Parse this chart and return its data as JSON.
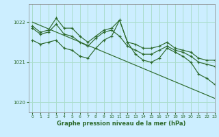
{
  "background_color": "#cceeff",
  "grid_color": "#aaddcc",
  "line_color": "#2d6a2d",
  "title": "Graphe pression niveau de la mer (hPa)",
  "xlim": [
    -0.5,
    23
  ],
  "ylim": [
    1019.75,
    1022.45
  ],
  "yticks": [
    1020,
    1021,
    1022
  ],
  "xticks": [
    0,
    1,
    2,
    3,
    4,
    5,
    6,
    7,
    8,
    9,
    10,
    11,
    12,
    13,
    14,
    15,
    16,
    17,
    18,
    19,
    20,
    21,
    22,
    23
  ],
  "series": [
    {
      "x": [
        0,
        23
      ],
      "y": [
        1022.0,
        1020.1
      ],
      "marker": false
    },
    {
      "x": [
        0,
        1,
        2,
        3,
        4,
        5,
        6,
        7,
        8,
        9,
        10,
        11,
        12,
        13,
        14,
        15,
        16,
        17,
        18,
        19,
        20,
        21,
        22,
        23
      ],
      "y": [
        1021.9,
        1021.75,
        1021.8,
        1022.1,
        1021.85,
        1021.85,
        1021.65,
        1021.5,
        1021.65,
        1021.8,
        1021.85,
        1022.05,
        1021.5,
        1021.45,
        1021.35,
        1021.35,
        1021.4,
        1021.5,
        1021.35,
        1021.3,
        1021.25,
        1021.1,
        1021.05,
        1021.05
      ],
      "marker": true
    },
    {
      "x": [
        0,
        1,
        2,
        3,
        4,
        5,
        6,
        7,
        8,
        9,
        10,
        11,
        12,
        13,
        14,
        15,
        16,
        17,
        18,
        19,
        20,
        21,
        22,
        23
      ],
      "y": [
        1021.85,
        1021.7,
        1021.75,
        1021.95,
        1021.7,
        1021.65,
        1021.5,
        1021.4,
        1021.6,
        1021.75,
        1021.8,
        1021.65,
        1021.4,
        1021.3,
        1021.2,
        1021.2,
        1021.3,
        1021.4,
        1021.3,
        1021.25,
        1021.15,
        1021.0,
        1020.95,
        1020.9
      ],
      "marker": true
    },
    {
      "x": [
        0,
        1,
        2,
        3,
        4,
        5,
        6,
        7,
        8,
        9,
        10,
        11,
        12,
        13,
        14,
        15,
        16,
        17,
        18,
        19,
        20,
        21,
        22,
        23
      ],
      "y": [
        1021.55,
        1021.45,
        1021.5,
        1021.55,
        1021.35,
        1021.3,
        1021.15,
        1021.1,
        1021.35,
        1021.55,
        1021.65,
        1022.05,
        1021.5,
        1021.2,
        1021.05,
        1021.0,
        1021.1,
        1021.35,
        1021.25,
        1021.15,
        1021.0,
        1020.7,
        1020.6,
        1020.45
      ],
      "marker": true
    }
  ]
}
